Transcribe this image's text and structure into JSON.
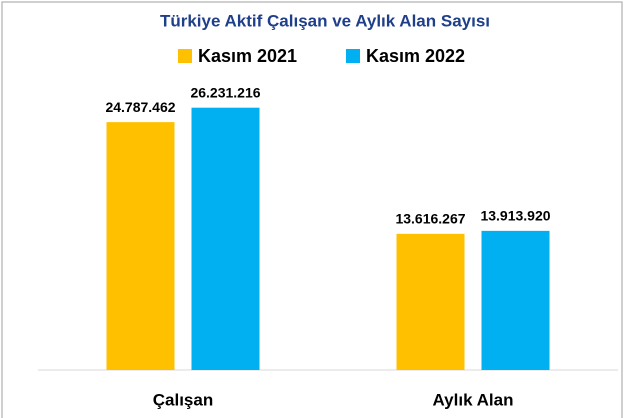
{
  "chart_data": {
    "type": "bar",
    "title": "Türkiye Aktif Çalışan ve Aylık Alan Sayısı",
    "categories": [
      "Çalışan",
      "Aylık Alan"
    ],
    "series": [
      {
        "name": "Kasım 2021",
        "color": "#ffc000",
        "values": [
          24787462,
          13616267
        ],
        "value_labels": [
          "24.787.462",
          "13.616.267"
        ]
      },
      {
        "name": "Kasım 2022",
        "color": "#00b0f0",
        "values": [
          26231216,
          13913920
        ],
        "value_labels": [
          "26.231.216",
          "13.913.920"
        ]
      }
    ],
    "ylim": [
      0,
      30000000
    ]
  }
}
